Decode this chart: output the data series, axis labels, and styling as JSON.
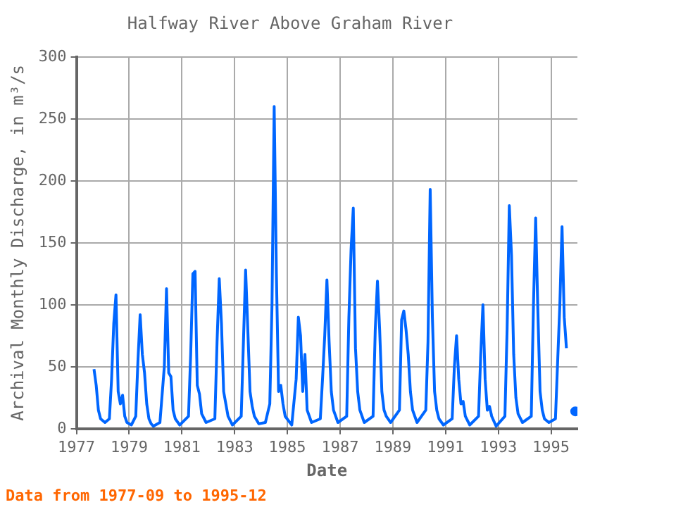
{
  "chart_data": {
    "type": "line",
    "title": "Halfway River Above Graham River",
    "xlabel": "Date",
    "ylabel": "Archival Monthly Discharge, in m³/s",
    "annotations": [
      "Data from 1977-09 to 1995-12"
    ],
    "series": [
      {
        "color": "#0066ff",
        "x": [
          "1977-09",
          "1977-10",
          "1977-11",
          "1977-12",
          "1978-02",
          "1978-04",
          "1978-05",
          "1978-06",
          "1978-07",
          "1978-08",
          "1978-09",
          "1978-10",
          "1978-11",
          "1978-12",
          "1979-02",
          "1979-04",
          "1979-05",
          "1979-06",
          "1979-07",
          "1979-08",
          "1979-09",
          "1979-10",
          "1979-11",
          "1979-12",
          "1980-03",
          "1980-05",
          "1980-06",
          "1980-07",
          "1980-08",
          "1980-09",
          "1980-10",
          "1980-12",
          "1981-04",
          "1981-05",
          "1981-06",
          "1981-07",
          "1981-08",
          "1981-09",
          "1981-10",
          "1981-12",
          "1982-04",
          "1982-05",
          "1982-06",
          "1982-07",
          "1982-08",
          "1982-09",
          "1982-10",
          "1982-12",
          "1983-04",
          "1983-05",
          "1983-06",
          "1983-07",
          "1983-08",
          "1983-09",
          "1983-10",
          "1983-12",
          "1984-03",
          "1984-05",
          "1984-06",
          "1984-07",
          "1984-08",
          "1984-09",
          "1984-10",
          "1984-11",
          "1984-12",
          "1985-03",
          "1985-05",
          "1985-06",
          "1985-07",
          "1985-08",
          "1985-09",
          "1985-10",
          "1985-12",
          "1986-04",
          "1986-05",
          "1986-06",
          "1986-07",
          "1986-08",
          "1986-09",
          "1986-10",
          "1986-12",
          "1987-04",
          "1987-05",
          "1987-06",
          "1987-07",
          "1987-08",
          "1987-09",
          "1987-10",
          "1987-12",
          "1988-04",
          "1988-05",
          "1988-06",
          "1988-07",
          "1988-08",
          "1988-09",
          "1988-10",
          "1988-12",
          "1989-04",
          "1989-05",
          "1989-06",
          "1989-07",
          "1989-08",
          "1989-09",
          "1989-10",
          "1989-12",
          "1990-04",
          "1990-05",
          "1990-06",
          "1990-07",
          "1990-08",
          "1990-09",
          "1990-10",
          "1990-12",
          "1991-04",
          "1991-05",
          "1991-06",
          "1991-07",
          "1991-08",
          "1991-09",
          "1991-10",
          "1991-12",
          "1992-04",
          "1992-05",
          "1992-06",
          "1992-07",
          "1992-08",
          "1992-09",
          "1992-10",
          "1992-12",
          "1993-04",
          "1993-05",
          "1993-06",
          "1993-07",
          "1993-08",
          "1993-09",
          "1993-10",
          "1993-12",
          "1994-04",
          "1994-05",
          "1994-06",
          "1994-07",
          "1994-08",
          "1994-09",
          "1994-10",
          "1994-12",
          "1995-03",
          "1995-05",
          "1995-06",
          "1995-07",
          "1995-08",
          "1995-10",
          "1995-12"
        ],
        "values": [
          48,
          35,
          15,
          8,
          5,
          8,
          40,
          85,
          108,
          30,
          20,
          27,
          10,
          5,
          3,
          10,
          55,
          92,
          60,
          45,
          20,
          8,
          4,
          2,
          5,
          50,
          113,
          45,
          42,
          15,
          8,
          3,
          10,
          60,
          125,
          127,
          35,
          28,
          12,
          5,
          8,
          70,
          121,
          85,
          30,
          20,
          10,
          3,
          10,
          70,
          128,
          80,
          30,
          18,
          10,
          4,
          5,
          20,
          100,
          260,
          125,
          30,
          35,
          20,
          10,
          3,
          40,
          90,
          75,
          30,
          60,
          15,
          5,
          8,
          40,
          75,
          120,
          70,
          30,
          15,
          5,
          10,
          90,
          145,
          178,
          65,
          30,
          15,
          5,
          10,
          80,
          119,
          80,
          30,
          15,
          10,
          5,
          15,
          88,
          95,
          80,
          60,
          30,
          15,
          5,
          15,
          70,
          193,
          90,
          30,
          15,
          8,
          3,
          8,
          50,
          75,
          40,
          20,
          22,
          10,
          3,
          10,
          60,
          100,
          40,
          15,
          18,
          10,
          2,
          10,
          80,
          180,
          140,
          60,
          25,
          12,
          5,
          10,
          100,
          170,
          95,
          30,
          15,
          8,
          5,
          8,
          100,
          163,
          90,
          65,
          null,
          14
        ]
      }
    ],
    "xlim": [
      "1977",
      "1996"
    ],
    "xticks": [
      "1977",
      "1979",
      "1981",
      "1983",
      "1985",
      "1987",
      "1989",
      "1991",
      "1993",
      "1995"
    ],
    "ylim": [
      0,
      300
    ],
    "yticks": [
      0,
      50,
      100,
      150,
      200,
      250,
      300
    ],
    "grid": true,
    "legend": false
  }
}
